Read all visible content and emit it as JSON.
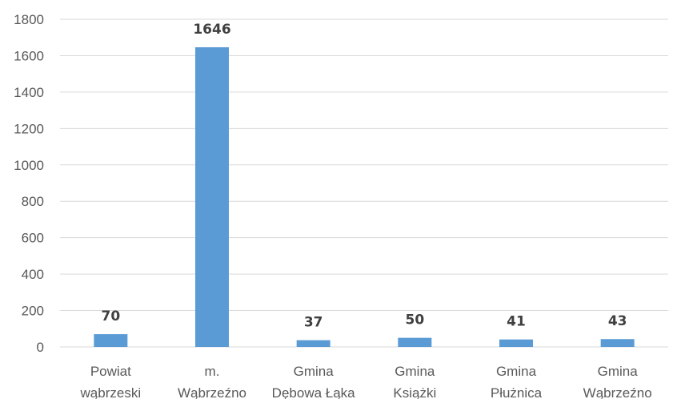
{
  "chart_data": {
    "type": "bar",
    "categories": [
      [
        "Powiat",
        "wąbrzeski"
      ],
      [
        "m.",
        "Wąbrzeźno"
      ],
      [
        "Gmina",
        "Dębowa Łąka"
      ],
      [
        "Gmina",
        "Książki"
      ],
      [
        "Gmina",
        "Płużnica"
      ],
      [
        "Gmina",
        "Wąbrzeźno"
      ]
    ],
    "values": [
      70,
      1646,
      37,
      50,
      41,
      43
    ],
    "data_labels": [
      "70",
      "1646",
      "37",
      "50",
      "41",
      "43"
    ],
    "ylim": [
      0,
      1800
    ],
    "yticks": [
      "0",
      "200",
      "400",
      "600",
      "800",
      "1000",
      "1200",
      "1400",
      "1600",
      "1800"
    ],
    "ytick_values": [
      0,
      200,
      400,
      600,
      800,
      1000,
      1200,
      1400,
      1600,
      1800
    ],
    "grid": true,
    "legend": "none",
    "bar_color": "#5b9bd5",
    "grid_color": "#d9d9d9"
  }
}
